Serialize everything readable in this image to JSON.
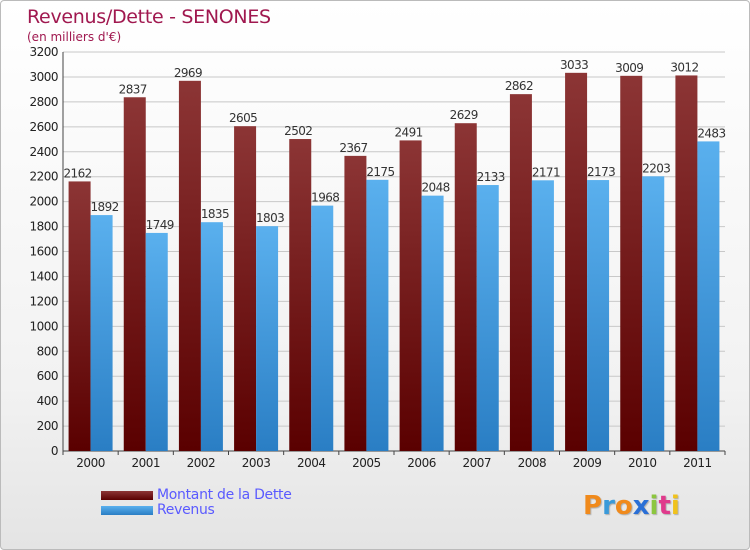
{
  "header": {
    "title": "Revenus/Dette - SENONES",
    "subtitle": "(en milliers d'€)"
  },
  "colors": {
    "debt_dark": "#5a0000",
    "debt_light": "#8c3535",
    "revenue_dark": "#2a7ec4",
    "revenue_light": "#5ab0ee",
    "title": "#a0184f",
    "legend_text": "#5a5aff"
  },
  "brand": {
    "letters": [
      "P",
      "r",
      "o",
      "x",
      "i",
      "t",
      "i"
    ],
    "letter_colors": [
      "#f08a1c",
      "#3a9ad9",
      "#f08a1c",
      "#2a6fd6",
      "#8cc63f",
      "#e03a8c",
      "#f0c21c"
    ]
  },
  "chart_data": {
    "type": "bar",
    "title": "Revenus/Dette - SENONES",
    "subtitle": "(en milliers d'€)",
    "categories": [
      "2000",
      "2001",
      "2002",
      "2003",
      "2004",
      "2005",
      "2006",
      "2007",
      "2008",
      "2009",
      "2010",
      "2011"
    ],
    "series": [
      {
        "name": "Montant de la Dette",
        "values": [
          2162,
          2837,
          2969,
          2605,
          2502,
          2367,
          2491,
          2629,
          2862,
          3033,
          3009,
          3012
        ]
      },
      {
        "name": "Revenus",
        "values": [
          1892,
          1749,
          1835,
          1803,
          1968,
          2175,
          2048,
          2133,
          2171,
          2173,
          2203,
          2483
        ]
      }
    ],
    "ylim": [
      0,
      3200
    ],
    "yticks": [
      0,
      200,
      400,
      600,
      800,
      1000,
      1200,
      1400,
      1600,
      1800,
      2000,
      2200,
      2400,
      2600,
      2800,
      3000,
      3200
    ],
    "grid": true,
    "legend_position": "bottom-left"
  }
}
